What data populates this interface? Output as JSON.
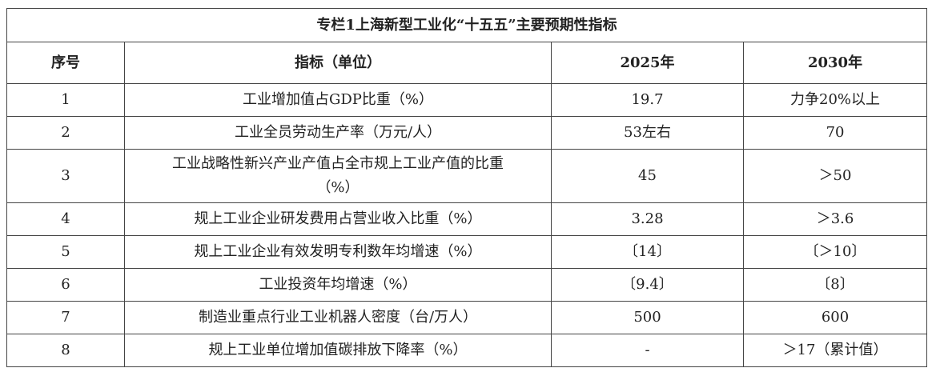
{
  "title": "专栏1上海新型工业化“十五五”主要预期性指标",
  "table": {
    "header": [
      "序号",
      "指标（单位）",
      "2025年",
      "2030年"
    ],
    "rows": [
      [
        "1",
        "工业增加值占GDP比重（%）",
        "19.7",
        "力争20%以上"
      ],
      [
        "2",
        "工业全员劳动生产率（万元/人）",
        "53左右",
        "70"
      ],
      [
        "3",
        "工业战略性新兴产业产值占全市规上工业产值的比重（%）",
        "45",
        "＞50"
      ],
      [
        "4",
        "规上工业企业研发费用占营业收入比重（%）",
        "3.28",
        "＞3.6"
      ],
      [
        "5",
        "规上工业企业有效发明专利数年均增速（%）",
        "〔14〕",
        "〔＞10〕"
      ],
      [
        "6",
        "工业投资年均增速（%）",
        "〔9.4〕",
        "〔8〕"
      ],
      [
        "7",
        "制造业重点行业工业机器人密度（台/万人）",
        "500",
        "600"
      ],
      [
        "8",
        "规上工业单位增加值碳排放下降率（%）",
        "-",
        "＞17（累计值）"
      ]
    ]
  }
}
